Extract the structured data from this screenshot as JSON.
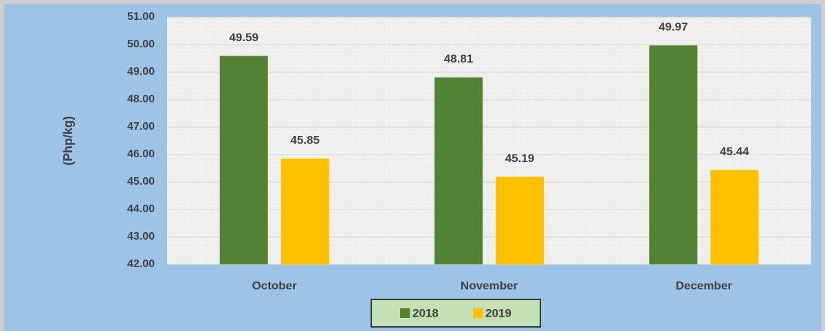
{
  "chart_data": {
    "type": "bar",
    "y_label": "(Php/kg)",
    "categories": [
      "October",
      "November",
      "December"
    ],
    "series": [
      {
        "name": "2018",
        "color": "#548235",
        "values": [
          49.59,
          48.81,
          49.97
        ]
      },
      {
        "name": "2019",
        "color": "#ffc000",
        "values": [
          45.85,
          45.19,
          45.44
        ]
      }
    ],
    "ylim": [
      42,
      51
    ],
    "yticks": [
      {
        "value": 42,
        "label": "42.00"
      },
      {
        "value": 43,
        "label": "43.00"
      },
      {
        "value": 44,
        "label": "44.00"
      },
      {
        "value": 45,
        "label": "45.00"
      },
      {
        "value": 46,
        "label": "46.00"
      },
      {
        "value": 47,
        "label": "47.00"
      },
      {
        "value": 48,
        "label": "48.00"
      },
      {
        "value": 49,
        "label": "49.00"
      },
      {
        "value": 50,
        "label": "50.00"
      },
      {
        "value": 51,
        "label": "51.00"
      }
    ],
    "grid": true,
    "legend": "bottom"
  }
}
